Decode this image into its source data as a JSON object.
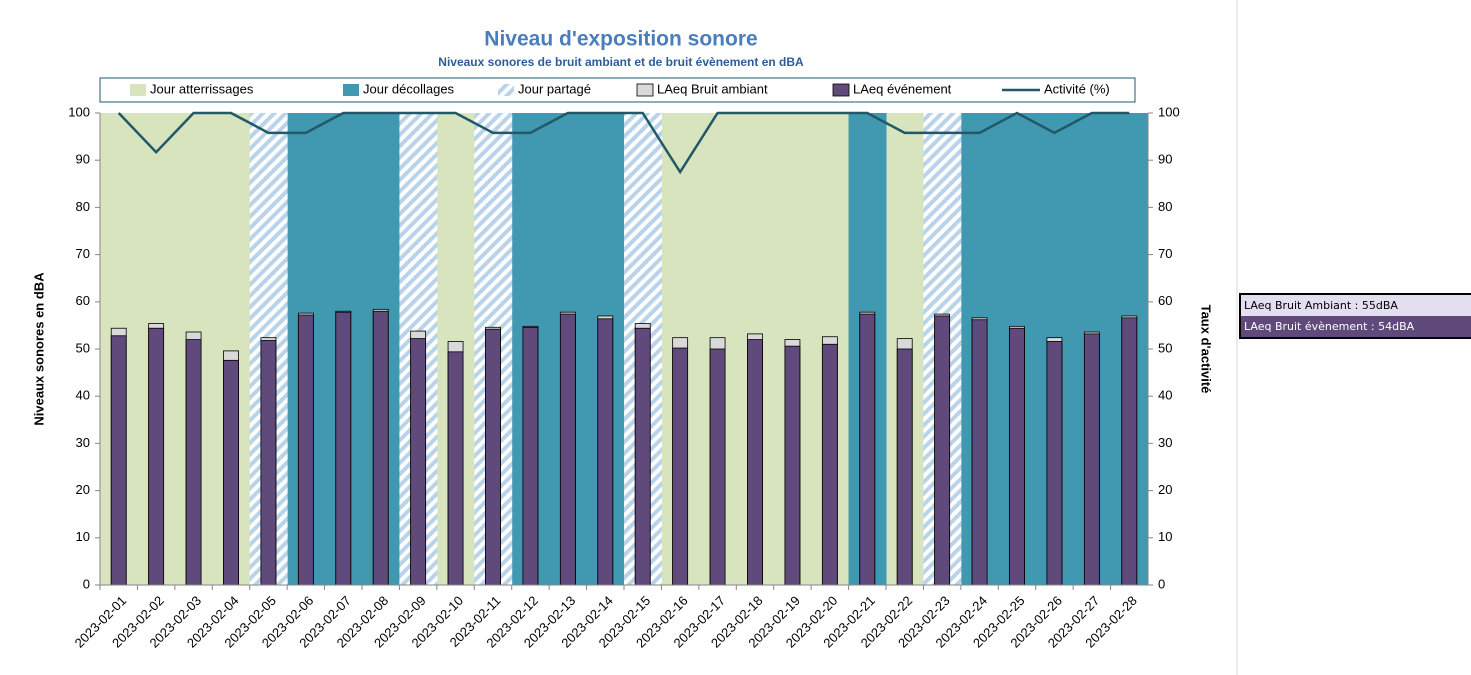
{
  "chart_data": {
    "type": "bar",
    "title": "Niveau d'exposition sonore",
    "subtitle": "Niveaux sonores de bruit ambiant et de bruit évènement en dBA",
    "y_label": "Niveaux sonores en dBA",
    "y2_label": "Taux d'activité",
    "categories": [
      "2023-02-01",
      "2023-02-02",
      "2023-02-03",
      "2023-02-04",
      "2023-02-05",
      "2023-02-06",
      "2023-02-07",
      "2023-02-08",
      "2023-02-09",
      "2023-02-10",
      "2023-02-11",
      "2023-02-12",
      "2023-02-13",
      "2023-02-14",
      "2023-02-15",
      "2023-02-16",
      "2023-02-17",
      "2023-02-18",
      "2023-02-19",
      "2023-02-20",
      "2023-02-21",
      "2023-02-22",
      "2023-02-23",
      "2023-02-24",
      "2023-02-25",
      "2023-02-26",
      "2023-02-27",
      "2023-02-28"
    ],
    "series": [
      {
        "name": "Jour atterrissages",
        "type": "band",
        "color": "#d7e4bd",
        "values": [
          100,
          100,
          100,
          100,
          null,
          null,
          null,
          null,
          null,
          100,
          null,
          null,
          null,
          null,
          null,
          100,
          100,
          100,
          100,
          100,
          null,
          100,
          null,
          null,
          null,
          null,
          null,
          null
        ]
      },
      {
        "name": "Jour décollages",
        "type": "band",
        "color": "#4198b1",
        "values": [
          null,
          null,
          null,
          null,
          null,
          100,
          100,
          100,
          null,
          null,
          null,
          100,
          100,
          100,
          null,
          null,
          null,
          null,
          null,
          null,
          100,
          null,
          null,
          100,
          100,
          100,
          100,
          100
        ]
      },
      {
        "name": "Jour partagé",
        "type": "band",
        "color": "#b9d3ea",
        "pattern": "stripes",
        "values": [
          null,
          null,
          null,
          null,
          100,
          null,
          null,
          null,
          100,
          null,
          100,
          null,
          null,
          null,
          100,
          null,
          null,
          null,
          null,
          null,
          null,
          null,
          100,
          null,
          null,
          null,
          null,
          null
        ]
      },
      {
        "name": "LAeq Bruit ambiant",
        "type": "bar",
        "color": "#d9d9d9",
        "values": [
          54.4,
          55.4,
          53.6,
          49.6,
          52.4,
          57.6,
          58.0,
          58.4,
          53.8,
          51.6,
          54.6,
          54.8,
          57.8,
          57.0,
          55.4,
          52.4,
          52.4,
          53.2,
          52.0,
          52.6,
          57.8,
          52.2,
          57.4,
          56.6,
          54.8,
          52.4,
          53.6,
          57.0
        ]
      },
      {
        "name": "LAeq événement",
        "type": "bar",
        "color": "#604a7b",
        "values": [
          52.8,
          54.4,
          52.0,
          47.6,
          51.8,
          57.2,
          57.8,
          58.0,
          52.2,
          49.4,
          54.2,
          54.6,
          57.4,
          56.4,
          54.4,
          50.2,
          50.0,
          52.0,
          50.6,
          51.0,
          57.4,
          50.0,
          57.0,
          56.2,
          54.4,
          51.6,
          53.2,
          56.6
        ]
      },
      {
        "name": "Activité (%)",
        "type": "line",
        "axis": "y2",
        "color": "#215968",
        "values": [
          100,
          91.7,
          100,
          100,
          95.8,
          95.8,
          100,
          100,
          100,
          100,
          95.8,
          95.8,
          100,
          100,
          100,
          87.5,
          100,
          100,
          100,
          100,
          100,
          95.8,
          95.8,
          95.8,
          100,
          95.8,
          100,
          100
        ]
      }
    ],
    "ylim": [
      0,
      100
    ],
    "yticks": [
      0,
      10,
      20,
      30,
      40,
      50,
      60,
      70,
      80,
      90,
      100
    ],
    "y2lim": [
      0,
      100
    ],
    "y2ticks": [
      0,
      10,
      20,
      30,
      40,
      50,
      60,
      70,
      80,
      90,
      100
    ],
    "grid": false,
    "annotations": [
      "LAeq Bruit Ambiant : 55dBA",
      "LAeq Bruit évènement : 54dBA"
    ]
  }
}
